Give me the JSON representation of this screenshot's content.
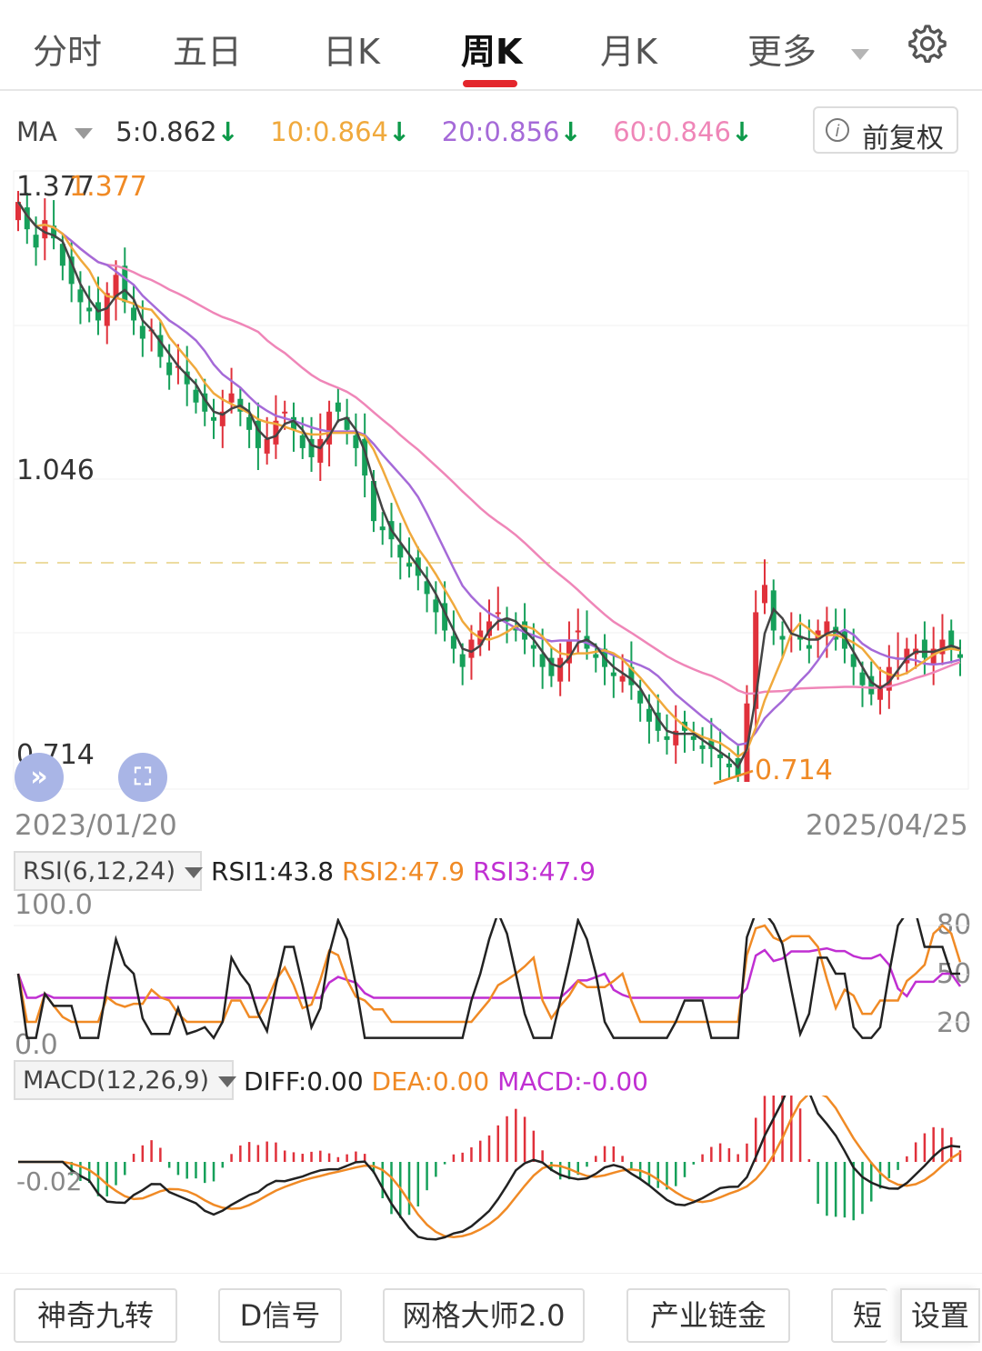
{
  "tabs": [
    {
      "label": "分时"
    },
    {
      "label": "五日"
    },
    {
      "label": "日K"
    },
    {
      "label": "周K",
      "active": true
    },
    {
      "label": "月K"
    },
    {
      "label": "更多"
    }
  ],
  "settings_icon": "gear-icon",
  "ma": {
    "label": "MA",
    "items": [
      {
        "text": "5:0.862",
        "color": "#333333"
      },
      {
        "text": "10:0.864",
        "color": "#f0a93c"
      },
      {
        "text": "20:0.856",
        "color": "#a56ad8"
      },
      {
        "text": "60:0.846",
        "color": "#ef86b8"
      }
    ],
    "arrow": "↓"
  },
  "restore_button": "前复权",
  "price": {
    "high_label": "1.377",
    "mid_label": "1.046",
    "low_label": "0.714",
    "low_marker": "0.714",
    "start_date": "2023/01/20",
    "end_date": "2025/04/25"
  },
  "rsi": {
    "select": "RSI(6,12,24)",
    "rsi1": "RSI1:43.8",
    "rsi2": "RSI2:47.9",
    "rsi3": "RSI3:47.9",
    "top": "100.0",
    "bottom": "0.0",
    "level80": "80",
    "level50": "50",
    "level20": "20"
  },
  "macd": {
    "select": "MACD(12,26,9)",
    "diff": "DIFF:0.00",
    "dea": "DEA:0.00",
    "macd": "MACD:-0.00",
    "axis_label": "-0.02"
  },
  "bottom_tools": [
    "神奇九转",
    "D信号",
    "网格大师2.0",
    "产业链金",
    "短",
    "设置"
  ],
  "colors": {
    "up": "#e0313b",
    "down": "#16a05a",
    "ma5": "#333333",
    "ma10": "#f0a93c",
    "ma20": "#a56ad8",
    "ma60": "#ef86b8",
    "tab_indicator": "#e3262c"
  },
  "chart_data": {
    "type": "candlestick",
    "period": "weekly",
    "price_range": [
      0.714,
      1.377
    ],
    "price_ticks": [
      1.377,
      1.046,
      0.714
    ],
    "x_range": [
      "2023/01/20",
      "2025/04/25"
    ],
    "close_series": [
      1.35,
      1.32,
      1.3,
      1.33,
      1.31,
      1.28,
      1.26,
      1.24,
      1.23,
      1.22,
      1.25,
      1.27,
      1.24,
      1.22,
      1.2,
      1.21,
      1.18,
      1.16,
      1.17,
      1.15,
      1.13,
      1.12,
      1.11,
      1.12,
      1.14,
      1.12,
      1.1,
      1.08,
      1.09,
      1.11,
      1.12,
      1.1,
      1.08,
      1.07,
      1.09,
      1.12,
      1.12,
      1.1,
      1.08,
      1.05,
      1.0,
      0.99,
      0.98,
      0.96,
      0.95,
      0.94,
      0.92,
      0.9,
      0.88,
      0.86,
      0.84,
      0.87,
      0.88,
      0.89,
      0.9,
      0.89,
      0.88,
      0.87,
      0.86,
      0.84,
      0.83,
      0.85,
      0.87,
      0.88,
      0.86,
      0.85,
      0.84,
      0.83,
      0.83,
      0.82,
      0.8,
      0.78,
      0.77,
      0.76,
      0.77,
      0.77,
      0.76,
      0.75,
      0.75,
      0.74,
      0.73,
      0.72,
      0.8,
      0.9,
      0.93,
      0.88,
      0.87,
      0.88,
      0.87,
      0.86,
      0.88,
      0.89,
      0.87,
      0.86,
      0.84,
      0.82,
      0.81,
      0.82,
      0.84,
      0.85,
      0.86,
      0.86,
      0.85,
      0.86,
      0.87,
      0.86,
      0.85
    ],
    "ma_lines": {
      "ma5": "0.862",
      "ma10": "0.864",
      "ma20": "0.856",
      "ma60": "0.846"
    }
  }
}
